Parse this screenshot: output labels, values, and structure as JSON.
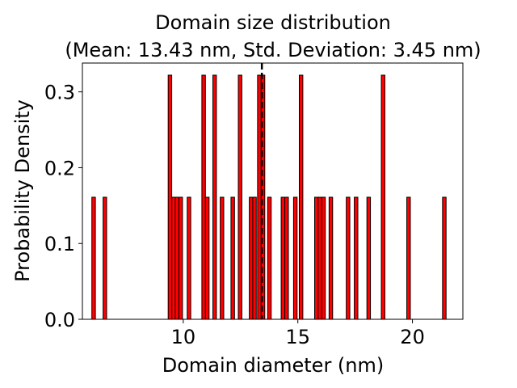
{
  "chart_data": {
    "type": "bar",
    "title_line1": "Domain size distribution",
    "title_line2": "(Mean: 13.43 nm, Std. Deviation: 3.45 nm)",
    "xlabel": "Domain diameter (nm)",
    "ylabel": "Probability Density",
    "xlim": [
      5.6,
      22.2
    ],
    "ylim": [
      0.0,
      0.338
    ],
    "xticks": [
      10,
      15,
      20
    ],
    "yticks": [
      0.0,
      0.1,
      0.2,
      0.3
    ],
    "ytick_labels": [
      "0.0",
      "0.1",
      "0.2",
      "0.3"
    ],
    "bin_width": 0.155,
    "bars": [
      {
        "x": 6.09,
        "density": 0.161
      },
      {
        "x": 6.58,
        "density": 0.161
      },
      {
        "x": 9.42,
        "density": 0.322
      },
      {
        "x": 9.58,
        "density": 0.161
      },
      {
        "x": 9.73,
        "density": 0.161
      },
      {
        "x": 9.89,
        "density": 0.161
      },
      {
        "x": 10.25,
        "density": 0.161
      },
      {
        "x": 10.89,
        "density": 0.322
      },
      {
        "x": 11.05,
        "density": 0.161
      },
      {
        "x": 11.37,
        "density": 0.322
      },
      {
        "x": 11.69,
        "density": 0.161
      },
      {
        "x": 12.16,
        "density": 0.161
      },
      {
        "x": 12.48,
        "density": 0.322
      },
      {
        "x": 12.96,
        "density": 0.161
      },
      {
        "x": 13.11,
        "density": 0.161
      },
      {
        "x": 13.32,
        "density": 0.322
      },
      {
        "x": 13.48,
        "density": 0.322
      },
      {
        "x": 13.76,
        "density": 0.161
      },
      {
        "x": 14.35,
        "density": 0.161
      },
      {
        "x": 14.51,
        "density": 0.161
      },
      {
        "x": 14.89,
        "density": 0.161
      },
      {
        "x": 15.14,
        "density": 0.322
      },
      {
        "x": 15.81,
        "density": 0.161
      },
      {
        "x": 15.96,
        "density": 0.161
      },
      {
        "x": 16.12,
        "density": 0.161
      },
      {
        "x": 16.44,
        "density": 0.161
      },
      {
        "x": 17.19,
        "density": 0.161
      },
      {
        "x": 17.54,
        "density": 0.161
      },
      {
        "x": 18.09,
        "density": 0.161
      },
      {
        "x": 18.72,
        "density": 0.322
      },
      {
        "x": 19.83,
        "density": 0.161
      },
      {
        "x": 21.39,
        "density": 0.161
      }
    ],
    "mean_line_x": 13.43,
    "bar_color": "#ff0000",
    "bar_edge_color": "#000000",
    "mean_line_color": "#000000",
    "grid": false,
    "legend": "none"
  }
}
